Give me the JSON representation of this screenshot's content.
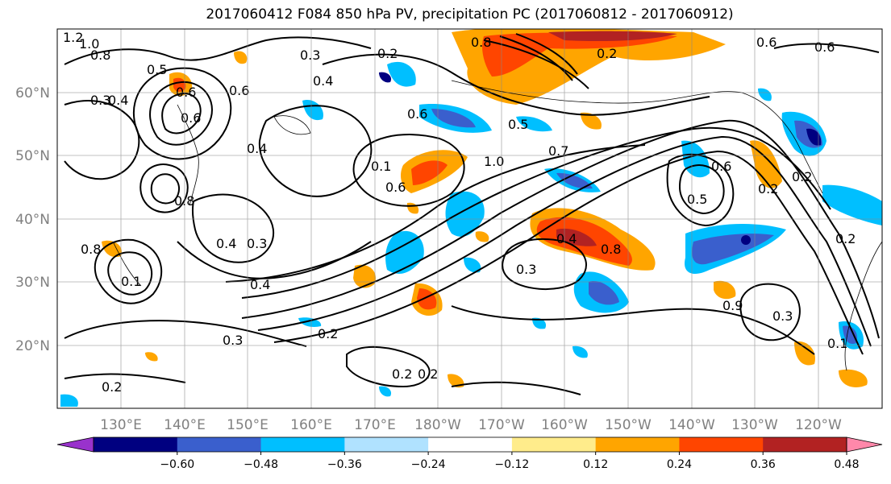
{
  "title": "2017060412 F084 850 hPa PV, precipitation PC (2017060812 - 2017060912)",
  "lon_ticks": [
    "130°E",
    "140°E",
    "150°E",
    "160°E",
    "170°E",
    "180°W",
    "170°W",
    "160°W",
    "150°W",
    "140°W",
    "130°W",
    "120°W"
  ],
  "lat_ticks": [
    "60°N",
    "50°N",
    "40°N",
    "30°N",
    "20°N"
  ],
  "colorbar": {
    "colors": [
      "#9932cc",
      "#000080",
      "#3a5fcd",
      "#00bfff",
      "#b0e2ff",
      "#ffffff",
      "#ffec8b",
      "#ffa500",
      "#ff4500",
      "#b22222",
      "#ff88aa"
    ],
    "labels": [
      "−0.60",
      "−0.48",
      "−0.36",
      "−0.24",
      "−0.12",
      "0.12",
      "0.24",
      "0.36",
      "0.48",
      "0.60"
    ]
  },
  "contour_labels": [
    "1.2",
    "1.0",
    "0.8",
    "0.5",
    "0.4",
    "0.3",
    "0.2",
    "0.6",
    "0.8",
    "1.0",
    "0.7",
    "0.5",
    "0.6",
    "0.4",
    "0.3",
    "0.4",
    "0.3",
    "0.2",
    "0.3",
    "0.2",
    "0.2",
    "0.1",
    "0.4",
    "0.8",
    "0.3",
    "0.6",
    "0.5",
    "0.6",
    "0.6",
    "0.9",
    "0.3",
    "0.1",
    "0.2",
    "0.2",
    "0.8",
    "0.2",
    "0.4",
    "0.6",
    "0.8",
    "0.2",
    "0.6",
    "0.4",
    "0.1",
    "0.6",
    "0.2"
  ]
}
